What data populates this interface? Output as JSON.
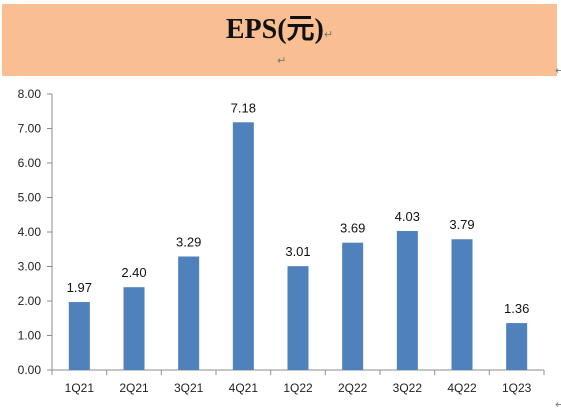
{
  "header": {
    "title": "EPS(元)",
    "mark": "↵"
  },
  "chart_data": {
    "type": "bar",
    "title": "EPS(元)",
    "categories": [
      "1Q21",
      "2Q21",
      "3Q21",
      "4Q21",
      "1Q22",
      "2Q22",
      "3Q22",
      "4Q22",
      "1Q23"
    ],
    "values": [
      1.97,
      2.4,
      3.29,
      7.18,
      3.01,
      3.69,
      4.03,
      3.79,
      1.36
    ],
    "value_labels": [
      "1.97",
      "2.40",
      "3.29",
      "7.18",
      "3.01",
      "3.69",
      "4.03",
      "3.79",
      "1.36"
    ],
    "ylim": [
      0,
      8
    ],
    "yticks": [
      "0.00",
      "1.00",
      "2.00",
      "3.00",
      "4.00",
      "5.00",
      "6.00",
      "7.00",
      "8.00"
    ],
    "grid": false,
    "legend": "none",
    "bar_color": "#4f81bd",
    "header_color": "#f9be92"
  }
}
